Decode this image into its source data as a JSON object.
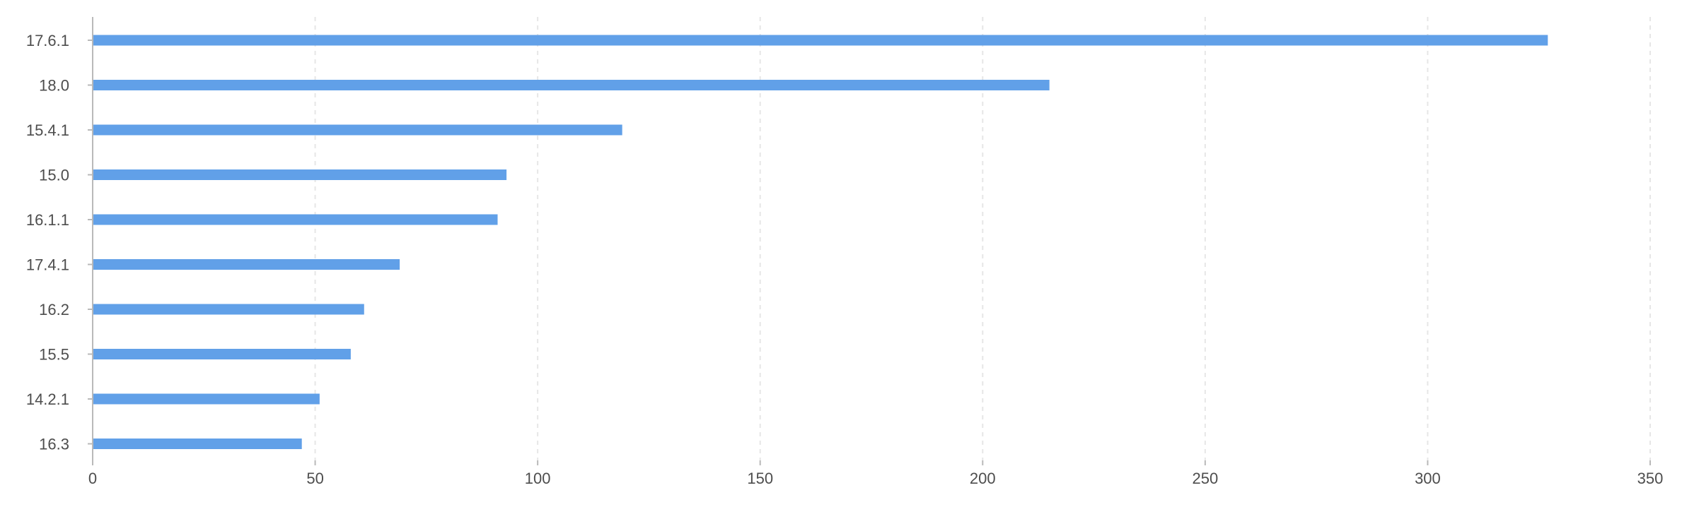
{
  "chart_data": {
    "type": "bar",
    "orientation": "horizontal",
    "categories": [
      "17.6.1",
      "18.0",
      "15.4.1",
      "15.0",
      "16.1.1",
      "17.4.1",
      "16.2",
      "15.5",
      "14.2.1",
      "16.3"
    ],
    "values": [
      327,
      215,
      119,
      93,
      91,
      69,
      61,
      58,
      51,
      47
    ],
    "x_ticks": [
      "0",
      "50",
      "100",
      "150",
      "200",
      "250",
      "300",
      "350"
    ],
    "xlim": [
      0,
      350
    ],
    "title": "",
    "xlabel": "",
    "ylabel": "",
    "grid": "vertical dashed",
    "legend": "none",
    "bar_color": "#61a0e8"
  }
}
